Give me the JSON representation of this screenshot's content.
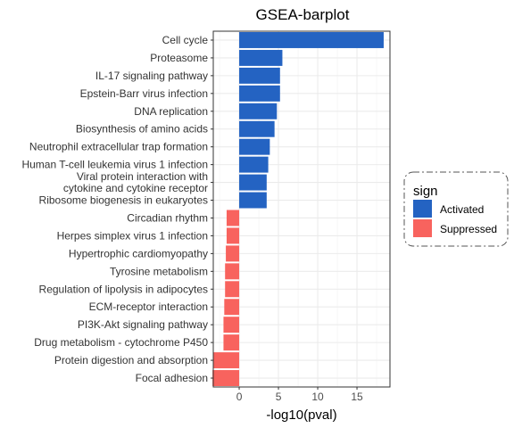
{
  "chart_data": {
    "type": "bar",
    "orientation": "horizontal",
    "title": "GSEA-barplot",
    "xlabel": "-log10(pval)",
    "ylabel": "",
    "xlim": [
      -3.3,
      19.2
    ],
    "xticks": [
      0,
      5,
      10,
      15
    ],
    "grid": true,
    "legend_position": "right",
    "legend": {
      "title": "sign",
      "entries": [
        {
          "label": "Activated",
          "color": "#2463c2"
        },
        {
          "label": "Suppressed",
          "color": "#f8635e"
        }
      ]
    },
    "bars": [
      {
        "label": "Cell cycle",
        "value": 18.4,
        "sign": "Activated"
      },
      {
        "label": "Proteasome",
        "value": 5.5,
        "sign": "Activated"
      },
      {
        "label": "IL-17 signaling pathway",
        "value": 5.2,
        "sign": "Activated"
      },
      {
        "label": "Epstein-Barr virus infection",
        "value": 5.2,
        "sign": "Activated"
      },
      {
        "label": "DNA replication",
        "value": 4.8,
        "sign": "Activated"
      },
      {
        "label": "Biosynthesis of amino acids",
        "value": 4.5,
        "sign": "Activated"
      },
      {
        "label": "Neutrophil extracellular trap formation",
        "value": 3.9,
        "sign": "Activated"
      },
      {
        "label": "Human T-cell leukemia virus 1 infection",
        "value": 3.7,
        "sign": "Activated"
      },
      {
        "label": "Viral protein interaction with\ncytokine and cytokine receptor",
        "value": 3.5,
        "sign": "Activated"
      },
      {
        "label": "Ribosome biogenesis in eukaryotes",
        "value": 3.5,
        "sign": "Activated"
      },
      {
        "label": "Circadian rhythm",
        "value": -1.6,
        "sign": "Suppressed"
      },
      {
        "label": "Herpes simplex virus 1 infection",
        "value": -1.6,
        "sign": "Suppressed"
      },
      {
        "label": "Hypertrophic cardiomyopathy",
        "value": -1.7,
        "sign": "Suppressed"
      },
      {
        "label": "Tyrosine metabolism",
        "value": -1.8,
        "sign": "Suppressed"
      },
      {
        "label": "Regulation of lipolysis in adipocytes",
        "value": -1.8,
        "sign": "Suppressed"
      },
      {
        "label": "ECM-receptor interaction",
        "value": -1.9,
        "sign": "Suppressed"
      },
      {
        "label": "PI3K-Akt signaling pathway",
        "value": -2.0,
        "sign": "Suppressed"
      },
      {
        "label": "Drug metabolism - cytochrome P450",
        "value": -2.0,
        "sign": "Suppressed"
      },
      {
        "label": "Protein digestion and absorption",
        "value": -3.3,
        "sign": "Suppressed"
      },
      {
        "label": "Focal adhesion",
        "value": -3.4,
        "sign": "Suppressed"
      }
    ]
  }
}
